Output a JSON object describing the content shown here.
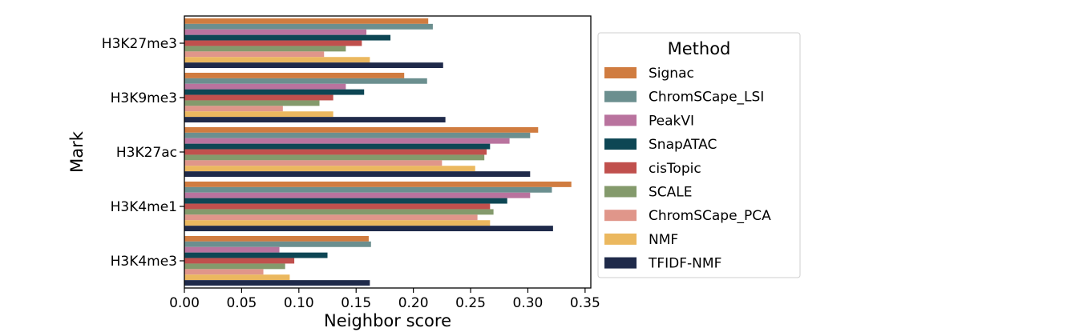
{
  "chart_data": {
    "type": "bar",
    "orientation": "horizontal",
    "xlabel": "Neighbor score",
    "ylabel": "Mark",
    "xlim": [
      0,
      0.355
    ],
    "xticks": [
      "0.00",
      "0.05",
      "0.10",
      "0.15",
      "0.20",
      "0.25",
      "0.30",
      "0.35"
    ],
    "categories": [
      "H3K27me3",
      "H3K9me3",
      "H3K27ac",
      "H3K4me1",
      "H3K4me3"
    ],
    "grid": false,
    "legend": {
      "title": "Method",
      "placement": "right-outside"
    },
    "series": [
      {
        "name": "Signac",
        "color": "#d07c40",
        "values": [
          0.213,
          0.192,
          0.309,
          0.338,
          0.161
        ]
      },
      {
        "name": "ChromSCape_LSI",
        "color": "#6b8f8f",
        "values": [
          0.217,
          0.212,
          0.302,
          0.321,
          0.163
        ]
      },
      {
        "name": "PeakVI",
        "color": "#b9739e",
        "values": [
          0.159,
          0.141,
          0.284,
          0.302,
          0.083
        ]
      },
      {
        "name": "SnapATAC",
        "color": "#0d4654",
        "values": [
          0.18,
          0.157,
          0.267,
          0.282,
          0.125
        ]
      },
      {
        "name": "cisTopic",
        "color": "#c0504d",
        "values": [
          0.155,
          0.13,
          0.264,
          0.267,
          0.096
        ]
      },
      {
        "name": "SCALE",
        "color": "#849a6c",
        "values": [
          0.141,
          0.118,
          0.262,
          0.27,
          0.088
        ]
      },
      {
        "name": "ChromSCape_PCA",
        "color": "#e0968a",
        "values": [
          0.122,
          0.086,
          0.225,
          0.256,
          0.069
        ]
      },
      {
        "name": "NMF",
        "color": "#ebb85f",
        "values": [
          0.162,
          0.13,
          0.254,
          0.267,
          0.092
        ]
      },
      {
        "name": "TFIDF-NMF",
        "color": "#1f2a4a",
        "values": [
          0.226,
          0.228,
          0.302,
          0.322,
          0.162
        ]
      }
    ]
  }
}
